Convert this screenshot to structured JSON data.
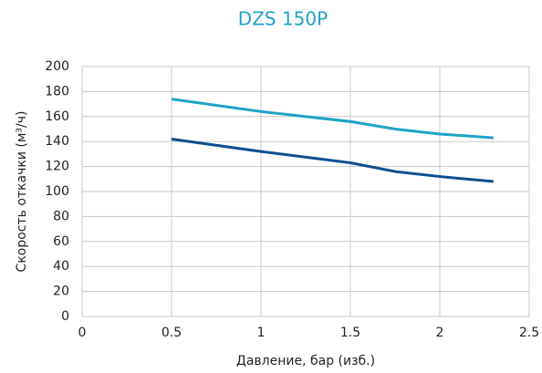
{
  "chart_data": {
    "type": "line",
    "title": "DZS 150P",
    "xlabel": "Давление, бар (изб.)",
    "ylabel": "Скорость откачки (м³/ч)",
    "x": [
      0.5,
      1.0,
      1.5,
      1.75,
      2.0,
      2.3
    ],
    "series": [
      {
        "color": "#1fa3c6",
        "values": [
          174,
          164,
          156,
          150,
          146,
          143
        ]
      },
      {
        "color": "#0f4f8e",
        "values": [
          142,
          132,
          123,
          116,
          112,
          108
        ]
      }
    ],
    "xlim": [
      0,
      2.5
    ],
    "xticks": [
      0,
      0.5,
      1,
      1.5,
      2,
      2.5
    ],
    "ylim": [
      0,
      200
    ],
    "yticks": [
      0,
      20,
      40,
      60,
      80,
      100,
      120,
      140,
      160,
      180,
      200
    ],
    "grid": true
  }
}
